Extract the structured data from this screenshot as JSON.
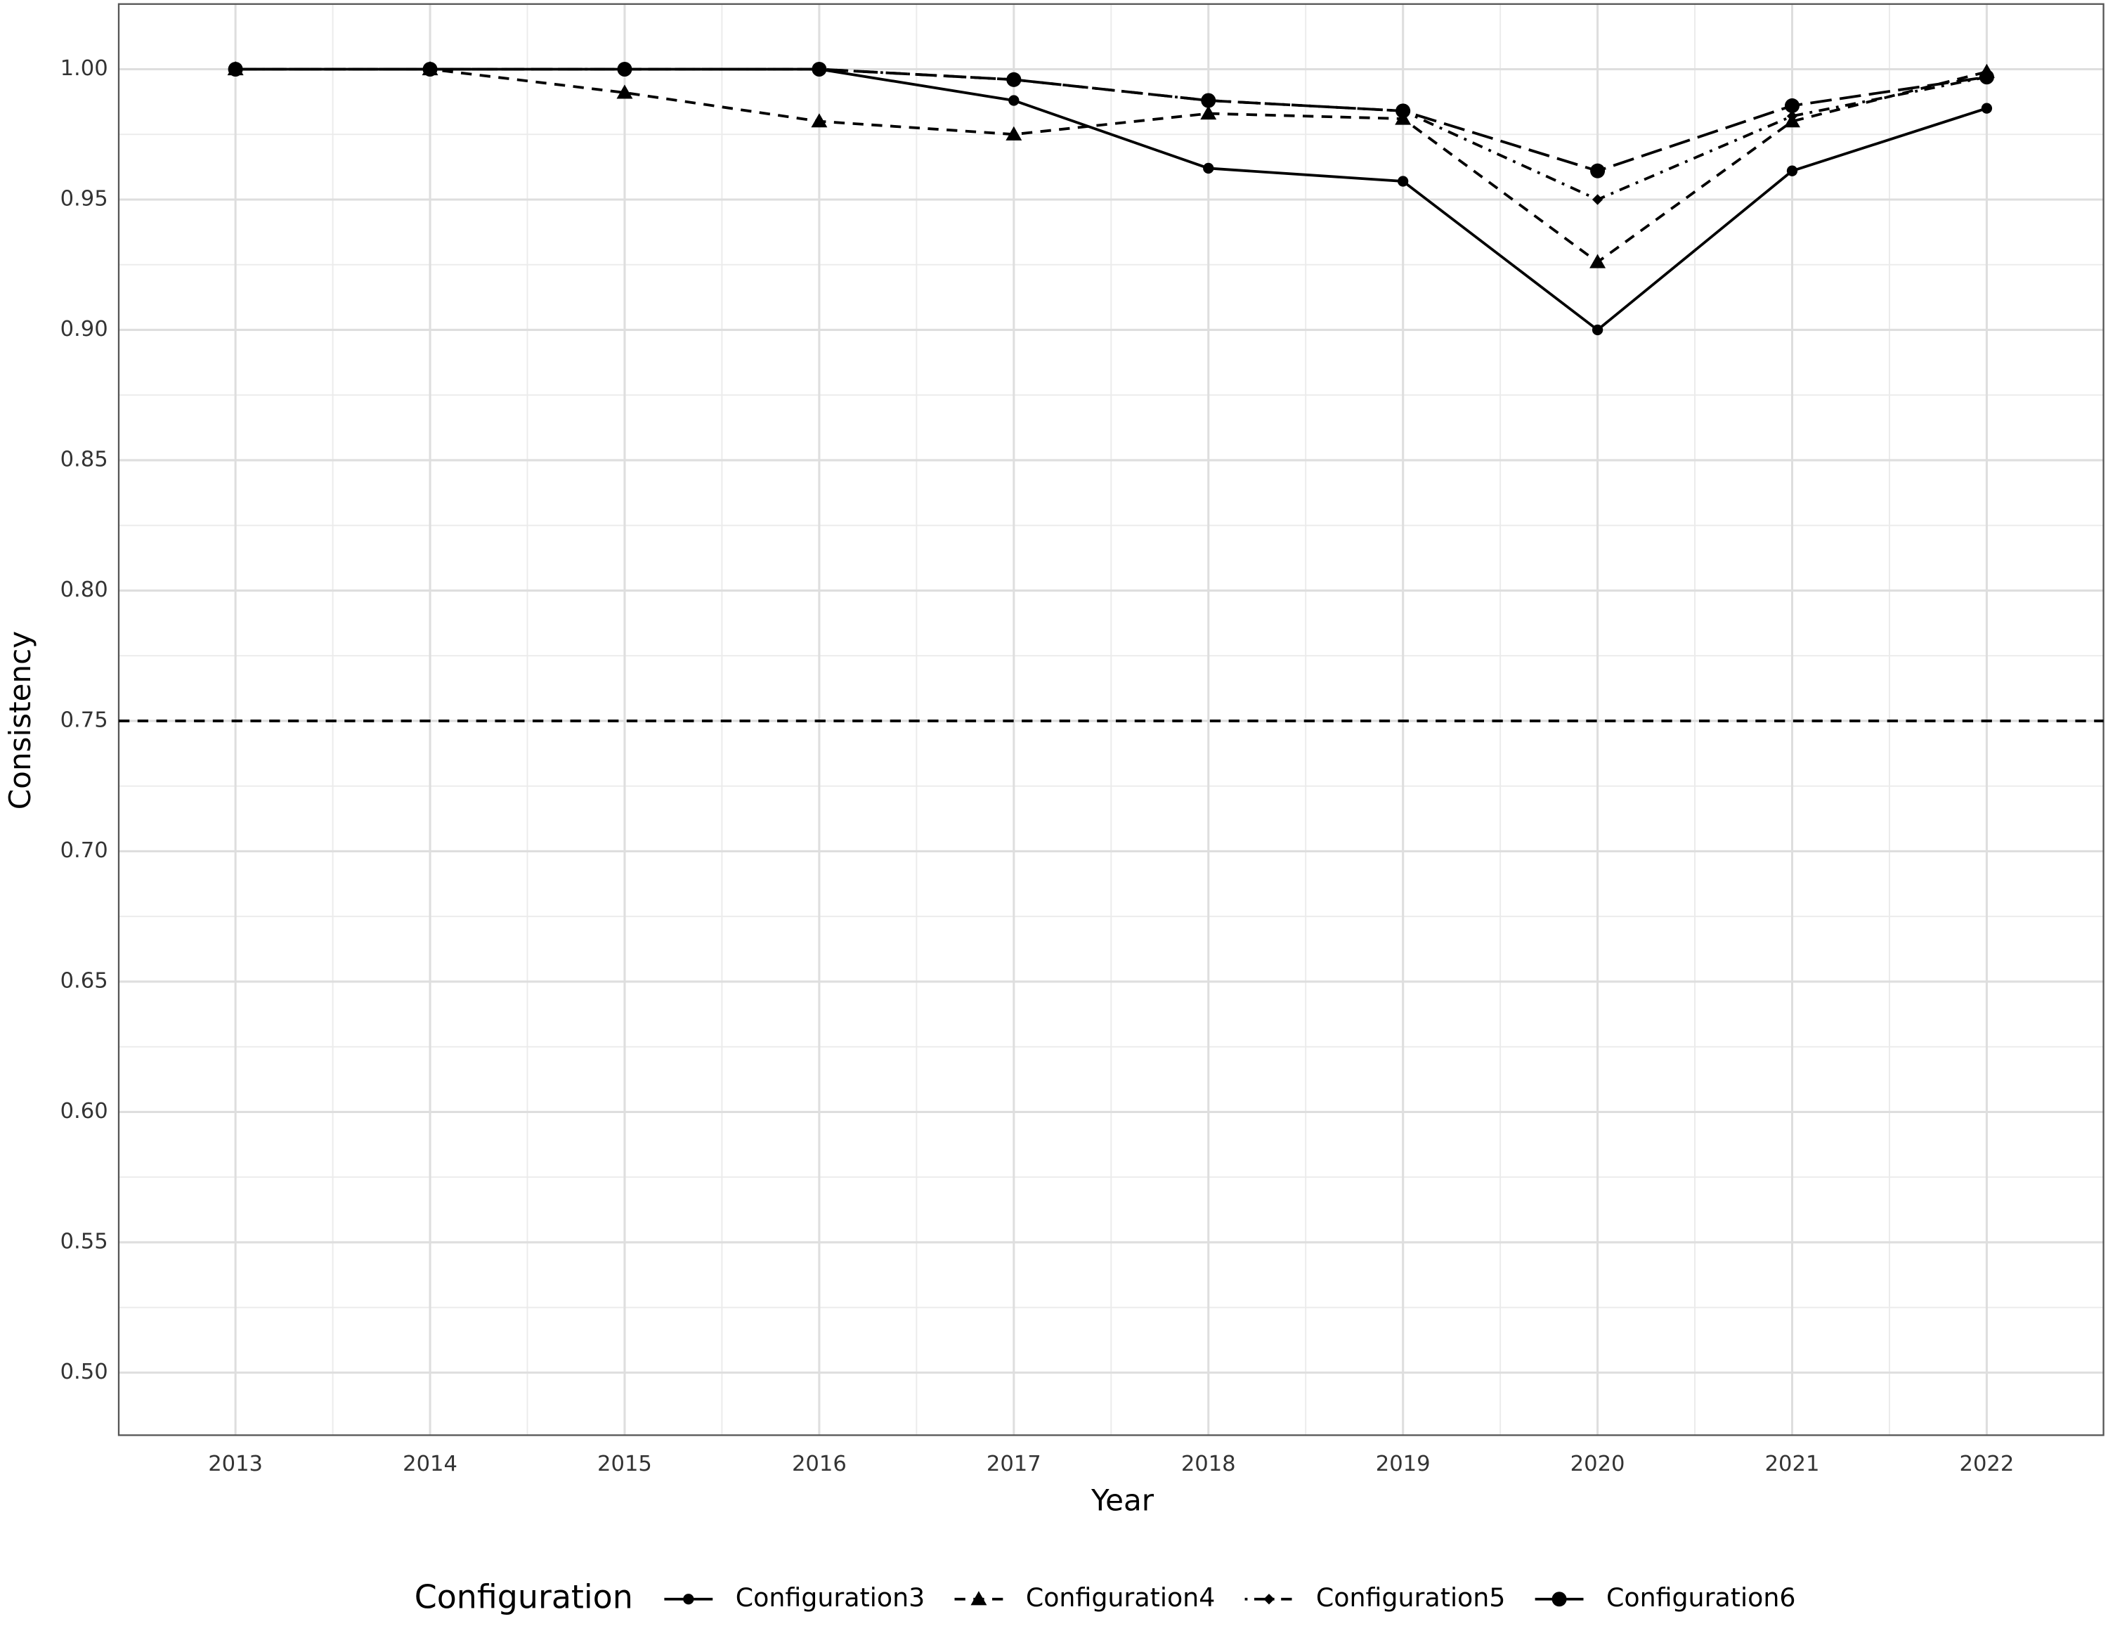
{
  "chart_data": {
    "type": "line",
    "x_label": "Year",
    "y_label": "Consistency",
    "x": [
      2013,
      2014,
      2015,
      2016,
      2017,
      2018,
      2019,
      2020,
      2021,
      2022
    ],
    "xlim": [
      2012.4,
      2022.6
    ],
    "xticks": [
      2013,
      2014,
      2015,
      2016,
      2017,
      2018,
      2019,
      2020,
      2021,
      2022
    ],
    "ylim": [
      0.476,
      1.025
    ],
    "yticks": [
      {
        "value": 0.5,
        "label": "0.50"
      },
      0.55,
      {
        "value": 0.6,
        "label": "0.60"
      },
      0.65,
      {
        "value": 0.7,
        "label": "0.70"
      },
      0.75,
      {
        "value": 0.8,
        "label": "0.80"
      },
      0.85,
      {
        "value": 0.9,
        "label": "0.90"
      },
      0.95,
      {
        "value": 1.0,
        "label": "1.00"
      }
    ],
    "grid": true,
    "reference_line": 0.75,
    "legend_title": "Configuration",
    "legend_position": "bottom",
    "series": [
      {
        "name": "Configuration3",
        "color": "#000000",
        "dash": "solid",
        "marker": "circle",
        "values": [
          1.0,
          1.0,
          1.0,
          1.0,
          0.988,
          0.962,
          0.957,
          0.9,
          0.961,
          0.985
        ]
      },
      {
        "name": "Configuration4",
        "color": "#000000",
        "dash": "dashed",
        "marker": "triangle",
        "values": [
          1.0,
          1.0,
          0.991,
          0.98,
          0.975,
          0.983,
          0.981,
          0.926,
          0.98,
          0.999
        ]
      },
      {
        "name": "Configuration5",
        "color": "#000000",
        "dash": "dotdash",
        "marker": "diamond",
        "values": [
          1.0,
          1.0,
          1.0,
          1.0,
          0.996,
          0.988,
          0.984,
          0.95,
          0.982,
          0.997
        ]
      },
      {
        "name": "Configuration6",
        "color": "#000000",
        "dash": "longdash",
        "marker": "bigcircle",
        "values": [
          1.0,
          1.0,
          1.0,
          1.0,
          0.996,
          0.988,
          0.984,
          0.961,
          0.986,
          0.997
        ]
      }
    ]
  }
}
